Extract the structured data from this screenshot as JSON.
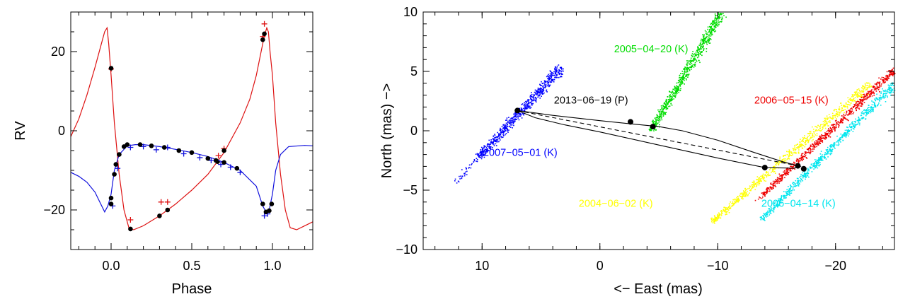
{
  "chart_data": [
    {
      "type": "line",
      "panel": "left",
      "xlabel": "Phase",
      "ylabel": "RV",
      "xlim": [
        -0.25,
        1.25
      ],
      "ylim": [
        -30,
        30
      ],
      "xticks": [
        0.0,
        0.5,
        1.0
      ],
      "xtick_labels": [
        "0.0",
        "0.5",
        "1.0"
      ],
      "yticks": [
        -20,
        0,
        20
      ],
      "ytick_labels": [
        "−20",
        "0",
        "20"
      ],
      "grid": false,
      "colors": {
        "primary": "#dd1111",
        "secondary": "#1111dd",
        "points": "#000000"
      },
      "series": [
        {
          "color": "#dd1111",
          "curve": [
            [
              -0.25,
              -1.5
            ],
            [
              -0.2,
              3
            ],
            [
              -0.15,
              9
            ],
            [
              -0.1,
              16
            ],
            [
              -0.06,
              22
            ],
            [
              -0.04,
              25
            ],
            [
              -0.025,
              26
            ],
            [
              -0.015,
              22
            ],
            [
              0,
              14
            ],
            [
              0.02,
              2
            ],
            [
              0.05,
              -11
            ],
            [
              0.08,
              -20
            ],
            [
              0.11,
              -24.5
            ],
            [
              0.14,
              -25
            ],
            [
              0.2,
              -24
            ],
            [
              0.3,
              -21.5
            ],
            [
              0.4,
              -18.5
            ],
            [
              0.5,
              -15
            ],
            [
              0.6,
              -11
            ],
            [
              0.7,
              -5.5
            ],
            [
              0.8,
              2
            ],
            [
              0.86,
              8
            ],
            [
              0.9,
              14
            ],
            [
              0.93,
              20
            ],
            [
              0.95,
              24
            ],
            [
              0.965,
              26
            ],
            [
              0.975,
              25
            ],
            [
              0.985,
              20
            ],
            [
              1.0,
              14
            ],
            [
              1.02,
              2
            ],
            [
              1.05,
              -11
            ],
            [
              1.08,
              -20
            ],
            [
              1.11,
              -24.5
            ],
            [
              1.15,
              -25
            ],
            [
              1.2,
              -24
            ],
            [
              1.25,
              -23
            ]
          ],
          "measured": [
            [
              0.0,
              15.8
            ],
            [
              0.12,
              -24.8
            ],
            [
              0.3,
              -21.5
            ],
            [
              0.35,
              -20
            ],
            [
              0.66,
              -7.8
            ],
            [
              0.7,
              -5
            ],
            [
              0.94,
              23
            ],
            [
              0.95,
              24.5
            ]
          ],
          "other": [
            [
              0.0,
              15.6
            ],
            [
              0.12,
              -22.5
            ],
            [
              0.31,
              -18
            ],
            [
              0.35,
              -18
            ],
            [
              0.665,
              -6.3
            ],
            [
              0.7,
              -4.5
            ],
            [
              0.95,
              27
            ],
            [
              0.94,
              23.8
            ]
          ]
        },
        {
          "color": "#1111dd",
          "curve": [
            [
              -0.25,
              -10.5
            ],
            [
              -0.2,
              -11.5
            ],
            [
              -0.15,
              -13
            ],
            [
              -0.1,
              -15.5
            ],
            [
              -0.07,
              -18
            ],
            [
              -0.04,
              -20.5
            ],
            [
              -0.02,
              -19
            ],
            [
              0.0,
              -16
            ],
            [
              0.02,
              -10
            ],
            [
              0.05,
              -6
            ],
            [
              0.1,
              -3.8
            ],
            [
              0.15,
              -3.5
            ],
            [
              0.2,
              -3.5
            ],
            [
              0.3,
              -4
            ],
            [
              0.4,
              -4.7
            ],
            [
              0.5,
              -5.5
            ],
            [
              0.6,
              -6.5
            ],
            [
              0.7,
              -8
            ],
            [
              0.8,
              -10
            ],
            [
              0.9,
              -14
            ],
            [
              0.94,
              -19
            ],
            [
              0.96,
              -20.5
            ],
            [
              0.98,
              -20
            ],
            [
              1.0,
              -16
            ],
            [
              1.02,
              -10
            ],
            [
              1.05,
              -6
            ],
            [
              1.1,
              -4
            ],
            [
              1.2,
              -3.7
            ],
            [
              1.25,
              -3.8
            ]
          ],
          "measured": [
            [
              0.0,
              -17
            ],
            [
              0.0,
              -18.5
            ],
            [
              0.02,
              -11
            ],
            [
              0.03,
              -8.5
            ],
            [
              0.05,
              -6
            ],
            [
              0.08,
              -4
            ],
            [
              0.1,
              -3.5
            ],
            [
              0.18,
              -3.5
            ],
            [
              0.25,
              -3.8
            ],
            [
              0.33,
              -4.2
            ],
            [
              0.42,
              -5
            ],
            [
              0.5,
              -5.5
            ],
            [
              0.6,
              -7
            ],
            [
              0.65,
              -7.5
            ],
            [
              0.7,
              -8
            ],
            [
              0.78,
              -9.5
            ],
            [
              0.94,
              -18.5
            ],
            [
              0.96,
              -20.5
            ],
            [
              0.98,
              -20.2
            ],
            [
              0.995,
              -18.5
            ]
          ],
          "other": [
            [
              0.01,
              -19
            ],
            [
              0.04,
              -9.5
            ],
            [
              0.12,
              -4.2
            ],
            [
              0.2,
              -4
            ],
            [
              0.28,
              -4.8
            ],
            [
              0.35,
              -4.2
            ],
            [
              0.45,
              -5.8
            ],
            [
              0.55,
              -6.8
            ],
            [
              0.62,
              -7.5
            ],
            [
              0.68,
              -8.5
            ],
            [
              0.74,
              -9.2
            ],
            [
              0.8,
              -10.5
            ],
            [
              0.95,
              -21.5
            ],
            [
              0.97,
              -21
            ]
          ]
        }
      ]
    },
    {
      "type": "scatter",
      "panel": "right",
      "xlabel": "<− East (mas)",
      "ylabel": "North (mas)  −>",
      "xlim": [
        15,
        -25
      ],
      "ylim": [
        -10,
        10
      ],
      "xticks": [
        10,
        0,
        -10,
        -20
      ],
      "xtick_labels": [
        "10",
        "0",
        "−10",
        "−20"
      ],
      "yticks": [
        -10,
        -5,
        0,
        5,
        10
      ],
      "ytick_labels": [
        "−10",
        "−5",
        "0",
        "5",
        "10"
      ],
      "grid": false,
      "epochs": [
        {
          "label": "2007−05−01 (K)",
          "color": "#0000ff",
          "band_start": [
            12.3,
            -4.3
          ],
          "band_end": [
            3.3,
            5.4
          ],
          "dense_start": 0.22,
          "width": 0.45,
          "label_pos": [
            9.9,
            -2.1
          ]
        },
        {
          "label": "2005−04−20 (K)",
          "color": "#00dd00",
          "band_start": [
            -4.3,
            0.0
          ],
          "band_end": [
            -10.3,
            10.0
          ],
          "dense_start": 0.0,
          "width": 0.45,
          "label_pos": [
            -1.2,
            6.6
          ]
        },
        {
          "label": "2006−05−15 (K)",
          "color": "#ee0000",
          "band_start": [
            -13.2,
            -5.9
          ],
          "band_end": [
            -25.0,
            5.2
          ],
          "dense_start": 0.05,
          "width": 0.35,
          "label_pos": [
            -13.1,
            2.3
          ]
        },
        {
          "label": "2004−06−02 (K)",
          "color": "#ffff00",
          "band_start": [
            -9.4,
            -7.7
          ],
          "band_end": [
            -22.9,
            4.0
          ],
          "dense_start": 0.0,
          "width": 0.4,
          "label_pos": [
            1.8,
            -6.4
          ]
        },
        {
          "label": "2006−04−14 (K)",
          "color": "#00e6ee",
          "band_start": [
            -13.6,
            -7.5
          ],
          "band_end": [
            -25.0,
            4.0
          ],
          "dense_start": 0.0,
          "width": 0.4,
          "label_pos": [
            -13.7,
            -6.4
          ]
        },
        {
          "label": "2013−06−19 (P)",
          "color": "#000000",
          "band_start": null,
          "band_end": null,
          "dense_start": 0,
          "width": 0,
          "label_pos": [
            3.9,
            2.3
          ]
        }
      ],
      "orbit": {
        "ellipse": [
          [
            7.0,
            1.7
          ],
          [
            4,
            1.3
          ],
          [
            0,
            0.85
          ],
          [
            -3,
            0.55
          ],
          [
            -5,
            0.35
          ],
          [
            -7,
            0.0
          ],
          [
            -10,
            -0.8
          ],
          [
            -13,
            -1.8
          ],
          [
            -15.5,
            -2.6
          ],
          [
            -17,
            -3.0
          ],
          [
            -16.5,
            -3.15
          ],
          [
            -14,
            -3.1
          ],
          [
            -10,
            -2.3
          ],
          [
            -5,
            -1.2
          ],
          [
            0,
            -0.1
          ],
          [
            3,
            0.5
          ],
          [
            5.5,
            1.1
          ],
          [
            7.0,
            1.7
          ]
        ],
        "dashed_line": [
          [
            7.0,
            1.7
          ],
          [
            -16.8,
            -2.95
          ]
        ],
        "points": [
          [
            7.0,
            1.7
          ],
          [
            -2.6,
            0.75
          ],
          [
            -4.5,
            0.35
          ],
          [
            -14,
            -3.1
          ],
          [
            -16.8,
            -2.95
          ],
          [
            -17.3,
            -3.2
          ]
        ]
      }
    }
  ]
}
